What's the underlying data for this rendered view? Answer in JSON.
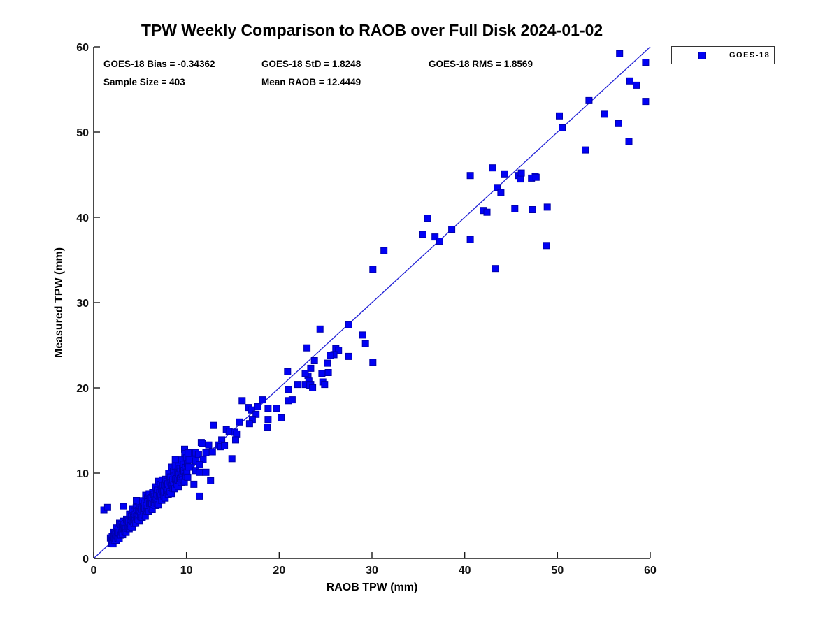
{
  "figure": {
    "background": "#ffffff"
  },
  "title": "TPW Weekly Comparison to RAOB over Full Disk 2024-01-02",
  "stats": {
    "bias": "GOES-18 Bias = -0.34362",
    "std": "GOES-18 StD = 1.8248",
    "rms": "GOES-18 RMS = 1.8569",
    "sample_size": "Sample Size = 403",
    "mean_raob": "Mean RAOB = 12.4449"
  },
  "legend": {
    "label": "GOES-18",
    "marker_color": "#0101f4"
  },
  "colors": {
    "marker_fill": "#0101f4",
    "marker_edge": "#0000aa",
    "reference_line": "#2323d6",
    "axis": "#1a1a1a"
  },
  "chart_data": {
    "type": "scatter",
    "title": "TPW Weekly Comparison to RAOB over Full Disk 2024-01-02",
    "xlabel": "RAOB TPW (mm)",
    "ylabel": "Measured TPW (mm)",
    "xlim": [
      0,
      60
    ],
    "ylim": [
      0,
      60
    ],
    "x_ticks": [
      0,
      10,
      20,
      30,
      40,
      50,
      60
    ],
    "y_ticks": [
      0,
      10,
      20,
      30,
      40,
      50,
      60
    ],
    "grid": false,
    "legend_position": "outside-top-right",
    "reference_line": {
      "from": [
        0,
        0
      ],
      "to": [
        60,
        60
      ]
    },
    "marker": {
      "shape": "square",
      "size": 9
    },
    "series": [
      {
        "name": "GOES-18",
        "points": [
          [
            56.7,
            59.2
          ],
          [
            59.5,
            58.2
          ],
          [
            57.8,
            56.0
          ],
          [
            58.5,
            55.5
          ],
          [
            59.5,
            53.6
          ],
          [
            53.4,
            53.7
          ],
          [
            55.1,
            52.1
          ],
          [
            50.2,
            51.9
          ],
          [
            56.6,
            51.0
          ],
          [
            50.5,
            50.5
          ],
          [
            57.7,
            48.9
          ],
          [
            53.0,
            47.9
          ],
          [
            45.8,
            44.9
          ],
          [
            47.6,
            44.8
          ],
          [
            43.0,
            45.8
          ],
          [
            44.3,
            45.1
          ],
          [
            40.6,
            44.9
          ],
          [
            46.0,
            44.5
          ],
          [
            46.1,
            45.2
          ],
          [
            47.2,
            44.6
          ],
          [
            47.7,
            44.7
          ],
          [
            43.5,
            43.5
          ],
          [
            43.9,
            42.9
          ],
          [
            45.4,
            41.0
          ],
          [
            47.3,
            40.9
          ],
          [
            48.9,
            41.2
          ],
          [
            42.0,
            40.8
          ],
          [
            42.4,
            40.6
          ],
          [
            36.0,
            39.9
          ],
          [
            38.6,
            38.6
          ],
          [
            35.5,
            38.0
          ],
          [
            36.8,
            37.7
          ],
          [
            37.3,
            37.2
          ],
          [
            40.6,
            37.4
          ],
          [
            48.8,
            36.7
          ],
          [
            43.3,
            34.0
          ],
          [
            31.3,
            36.1
          ],
          [
            30.1,
            33.9
          ],
          [
            27.5,
            27.4
          ],
          [
            24.4,
            26.9
          ],
          [
            29.0,
            26.2
          ],
          [
            29.3,
            25.2
          ],
          [
            23.0,
            24.7
          ],
          [
            26.1,
            24.6
          ],
          [
            26.4,
            24.4
          ],
          [
            25.9,
            23.9
          ],
          [
            25.5,
            23.8
          ],
          [
            27.5,
            23.7
          ],
          [
            30.1,
            23.0
          ],
          [
            23.8,
            23.2
          ],
          [
            25.2,
            22.9
          ],
          [
            23.4,
            22.3
          ],
          [
            23.1,
            21.4
          ],
          [
            22.8,
            21.7
          ],
          [
            24.6,
            21.7
          ],
          [
            25.3,
            21.8
          ],
          [
            24.7,
            20.7
          ],
          [
            24.9,
            20.4
          ],
          [
            23.2,
            20.8
          ],
          [
            23.4,
            20.4
          ],
          [
            22.8,
            20.4
          ],
          [
            22.0,
            20.4
          ],
          [
            20.9,
            21.9
          ],
          [
            23.3,
            20.3
          ],
          [
            23.6,
            20.0
          ],
          [
            21.0,
            19.8
          ],
          [
            21.0,
            18.5
          ],
          [
            21.4,
            18.6
          ],
          [
            16.0,
            18.5
          ],
          [
            18.2,
            18.6
          ],
          [
            16.7,
            17.7
          ],
          [
            17.0,
            17.4
          ],
          [
            17.7,
            17.8
          ],
          [
            18.8,
            17.6
          ],
          [
            19.7,
            17.6
          ],
          [
            17.5,
            16.9
          ],
          [
            17.1,
            16.3
          ],
          [
            18.8,
            16.3
          ],
          [
            20.2,
            16.5
          ],
          [
            15.7,
            16.0
          ],
          [
            16.8,
            15.8
          ],
          [
            18.7,
            15.4
          ],
          [
            14.3,
            15.1
          ],
          [
            14.6,
            14.9
          ],
          [
            15.2,
            14.8
          ],
          [
            15.4,
            14.6
          ],
          [
            15.3,
            13.9
          ],
          [
            14.9,
            11.7
          ],
          [
            12.9,
            15.6
          ],
          [
            13.8,
            13.9
          ],
          [
            13.5,
            13.3
          ],
          [
            13.7,
            13.1
          ],
          [
            11.6,
            13.6
          ],
          [
            12.4,
            13.3
          ],
          [
            14.1,
            13.2
          ],
          [
            11.7,
            13.5
          ],
          [
            11.0,
            12.4
          ],
          [
            11.3,
            12.2
          ],
          [
            12.1,
            12.4
          ],
          [
            12.8,
            12.5
          ],
          [
            9.8,
            12.8
          ],
          [
            10.6,
            11.6
          ],
          [
            11.0,
            11.4
          ],
          [
            11.8,
            11.6
          ],
          [
            8.8,
            11.6
          ],
          [
            10.5,
            10.7
          ],
          [
            11.4,
            11.0
          ],
          [
            11.0,
            10.3
          ],
          [
            11.4,
            10.1
          ],
          [
            12.1,
            10.1
          ],
          [
            12.6,
            9.1
          ],
          [
            10.8,
            8.7
          ],
          [
            11.4,
            7.3
          ],
          [
            1.1,
            5.7
          ],
          [
            1.5,
            6.0
          ],
          [
            3.2,
            6.1
          ],
          [
            4.6,
            6.8
          ],
          [
            1.8,
            2.4
          ],
          [
            1.9,
            2.13
          ],
          [
            1.95,
            1.8
          ],
          [
            1.99,
            2.59
          ],
          [
            2.04,
            2.12
          ],
          [
            2.09,
            1.71
          ],
          [
            2.14,
            3.04
          ],
          [
            2.18,
            2.56
          ],
          [
            2.23,
            2.15
          ],
          [
            2.28,
            2.96
          ],
          [
            2.32,
            2.32
          ],
          [
            2.37,
            2.82
          ],
          [
            2.42,
            2.12
          ],
          [
            2.46,
            3.59
          ],
          [
            2.51,
            2.66
          ],
          [
            2.56,
            3.09
          ],
          [
            2.61,
            2.38
          ],
          [
            2.65,
            3.4
          ],
          [
            2.7,
            3.0
          ],
          [
            2.75,
            2.3
          ],
          [
            2.79,
            4.14
          ],
          [
            2.84,
            2.95
          ],
          [
            2.89,
            3.3
          ],
          [
            2.93,
            2.74
          ],
          [
            2.98,
            3.96
          ],
          [
            3.03,
            3.07
          ],
          [
            3.08,
            3.64
          ],
          [
            3.12,
            2.78
          ],
          [
            3.17,
            4.37
          ],
          [
            3.22,
            3.48
          ],
          [
            3.26,
            3.97
          ],
          [
            3.31,
            3.57
          ],
          [
            3.36,
            3.18
          ],
          [
            3.4,
            4.1
          ],
          [
            3.45,
            3.54
          ],
          [
            3.5,
            3.06
          ],
          [
            3.54,
            4.6
          ],
          [
            3.59,
            4.03
          ],
          [
            3.64,
            3.55
          ],
          [
            3.68,
            4.47
          ],
          [
            3.73,
            3.73
          ],
          [
            3.78,
            4.31
          ],
          [
            3.83,
            3.48
          ],
          [
            3.87,
            5.19
          ],
          [
            3.92,
            4.1
          ],
          [
            3.97,
            4.59
          ],
          [
            4.01,
            3.75
          ],
          [
            4.06,
            4.94
          ],
          [
            4.11,
            4.46
          ],
          [
            4.15,
            3.62
          ],
          [
            4.2,
            5.78
          ],
          [
            4.25,
            4.38
          ],
          [
            4.29,
            4.77
          ],
          [
            4.34,
            4.12
          ],
          [
            4.39,
            5.53
          ],
          [
            4.44,
            4.48
          ],
          [
            4.48,
            5.14
          ],
          [
            4.53,
            4.13
          ],
          [
            4.58,
            5.99
          ],
          [
            4.62,
            4.93
          ],
          [
            4.67,
            5.51
          ],
          [
            4.72,
            5.02
          ],
          [
            4.76,
            4.56
          ],
          [
            4.81,
            5.61
          ],
          [
            4.86,
            4.96
          ],
          [
            4.9,
            4.4
          ],
          [
            4.95,
            6.15
          ],
          [
            5.0,
            5.5
          ],
          [
            5.04,
            4.94
          ],
          [
            5.09,
            5.99
          ],
          [
            5.14,
            5.14
          ],
          [
            5.19,
            5.79
          ],
          [
            5.23,
            4.83
          ],
          [
            5.28,
            6.78
          ],
          [
            5.33,
            5.53
          ],
          [
            5.37,
            6.07
          ],
          [
            5.42,
            5.12
          ],
          [
            5.47,
            6.47
          ],
          [
            5.51,
            5.91
          ],
          [
            5.56,
            4.96
          ],
          [
            5.61,
            7.41
          ],
          [
            5.65,
            5.8
          ],
          [
            5.7,
            6.25
          ],
          [
            5.75,
            5.5
          ],
          [
            5.8,
            7.1
          ],
          [
            5.84,
            5.89
          ],
          [
            5.89,
            6.64
          ],
          [
            5.94,
            5.49
          ],
          [
            5.98,
            7.58
          ],
          [
            6.03,
            6.38
          ],
          [
            6.08,
            7.03
          ],
          [
            6.12,
            6.46
          ],
          [
            6.17,
            5.94
          ],
          [
            6.22,
            7.12
          ],
          [
            6.26,
            6.37
          ],
          [
            6.31,
            5.74
          ],
          [
            6.36,
            7.72
          ],
          [
            6.4,
            6.97
          ],
          [
            6.45,
            6.34
          ],
          [
            6.5,
            7.52
          ],
          [
            6.55,
            6.55
          ],
          [
            6.59,
            7.27
          ],
          [
            6.64,
            6.19
          ],
          [
            6.69,
            8.39
          ],
          [
            6.73,
            6.96
          ],
          [
            6.78,
            7.57
          ],
          [
            6.83,
            6.49
          ],
          [
            6.87,
            8.0
          ],
          [
            6.92,
            7.37
          ],
          [
            6.97,
            6.29
          ],
          [
            7.01,
            9.04
          ],
          [
            7.06,
            7.23
          ],
          [
            7.11,
            7.73
          ],
          [
            7.15,
            6.87
          ],
          [
            7.2,
            8.67
          ],
          [
            7.25,
            7.31
          ],
          [
            7.3,
            8.15
          ],
          [
            7.34,
            6.83
          ],
          [
            7.39,
            9.2
          ],
          [
            7.43,
            7.83
          ],
          [
            7.48,
            8.55
          ],
          [
            7.53,
            7.91
          ],
          [
            7.57,
            7.32
          ],
          [
            7.62,
            8.64
          ],
          [
            7.67,
            7.8
          ],
          [
            7.71,
            7.07
          ],
          [
            7.76,
            9.28
          ],
          [
            7.81,
            8.45
          ],
          [
            7.85,
            7.72
          ],
          [
            7.9,
            9.04
          ],
          [
            7.95,
            7.95
          ],
          [
            7.99,
            8.75
          ],
          [
            8.04,
            7.53
          ],
          [
            8.09,
            10.0
          ],
          [
            8.13,
            8.38
          ],
          [
            8.18,
            9.07
          ],
          [
            8.23,
            7.85
          ],
          [
            8.27,
            9.54
          ],
          [
            8.32,
            8.83
          ],
          [
            8.37,
            7.61
          ],
          [
            8.41,
            10.7
          ],
          [
            8.46,
            8.65
          ],
          [
            8.51,
            9.21
          ],
          [
            8.55,
            8.23
          ],
          [
            8.6,
            10.25
          ],
          [
            8.65,
            8.71
          ],
          [
            8.69,
            9.64
          ],
          [
            8.74,
            8.17
          ],
          [
            8.79,
            10.82
          ],
          [
            8.83,
            9.27
          ],
          [
            8.88,
            10.09
          ],
          [
            8.93,
            9.34
          ],
          [
            8.98,
            8.71
          ],
          [
            9.02,
            10.12
          ],
          [
            9.07,
            9.21
          ],
          [
            9.12,
            8.43
          ],
          [
            9.16,
            10.8
          ],
          [
            9.21,
            9.9
          ],
          [
            9.26,
            9.12
          ],
          [
            9.3,
            10.53
          ],
          [
            9.35,
            9.35
          ],
          [
            9.4,
            10.22
          ],
          [
            9.44,
            8.89
          ],
          [
            9.49,
            11.55
          ],
          [
            9.54,
            9.81
          ],
          [
            9.58,
            10.54
          ],
          [
            9.63,
            9.22
          ],
          [
            9.68,
            11.05
          ],
          [
            9.72,
            10.27
          ],
          [
            9.77,
            8.95
          ],
          [
            9.82,
            12.29
          ],
          [
            9.86,
            10.07
          ],
          [
            9.91,
            10.66
          ],
          [
            9.96,
            9.62
          ],
          [
            10.0,
            11.78
          ],
          [
            10.05,
            10.12
          ],
          [
            10.1,
            11.13
          ],
          [
            10.14,
            9.52
          ],
          [
            10.19,
            12.38
          ],
          [
            10.24,
            10.72
          ],
          [
            10.28,
            11.58
          ]
        ]
      }
    ]
  }
}
